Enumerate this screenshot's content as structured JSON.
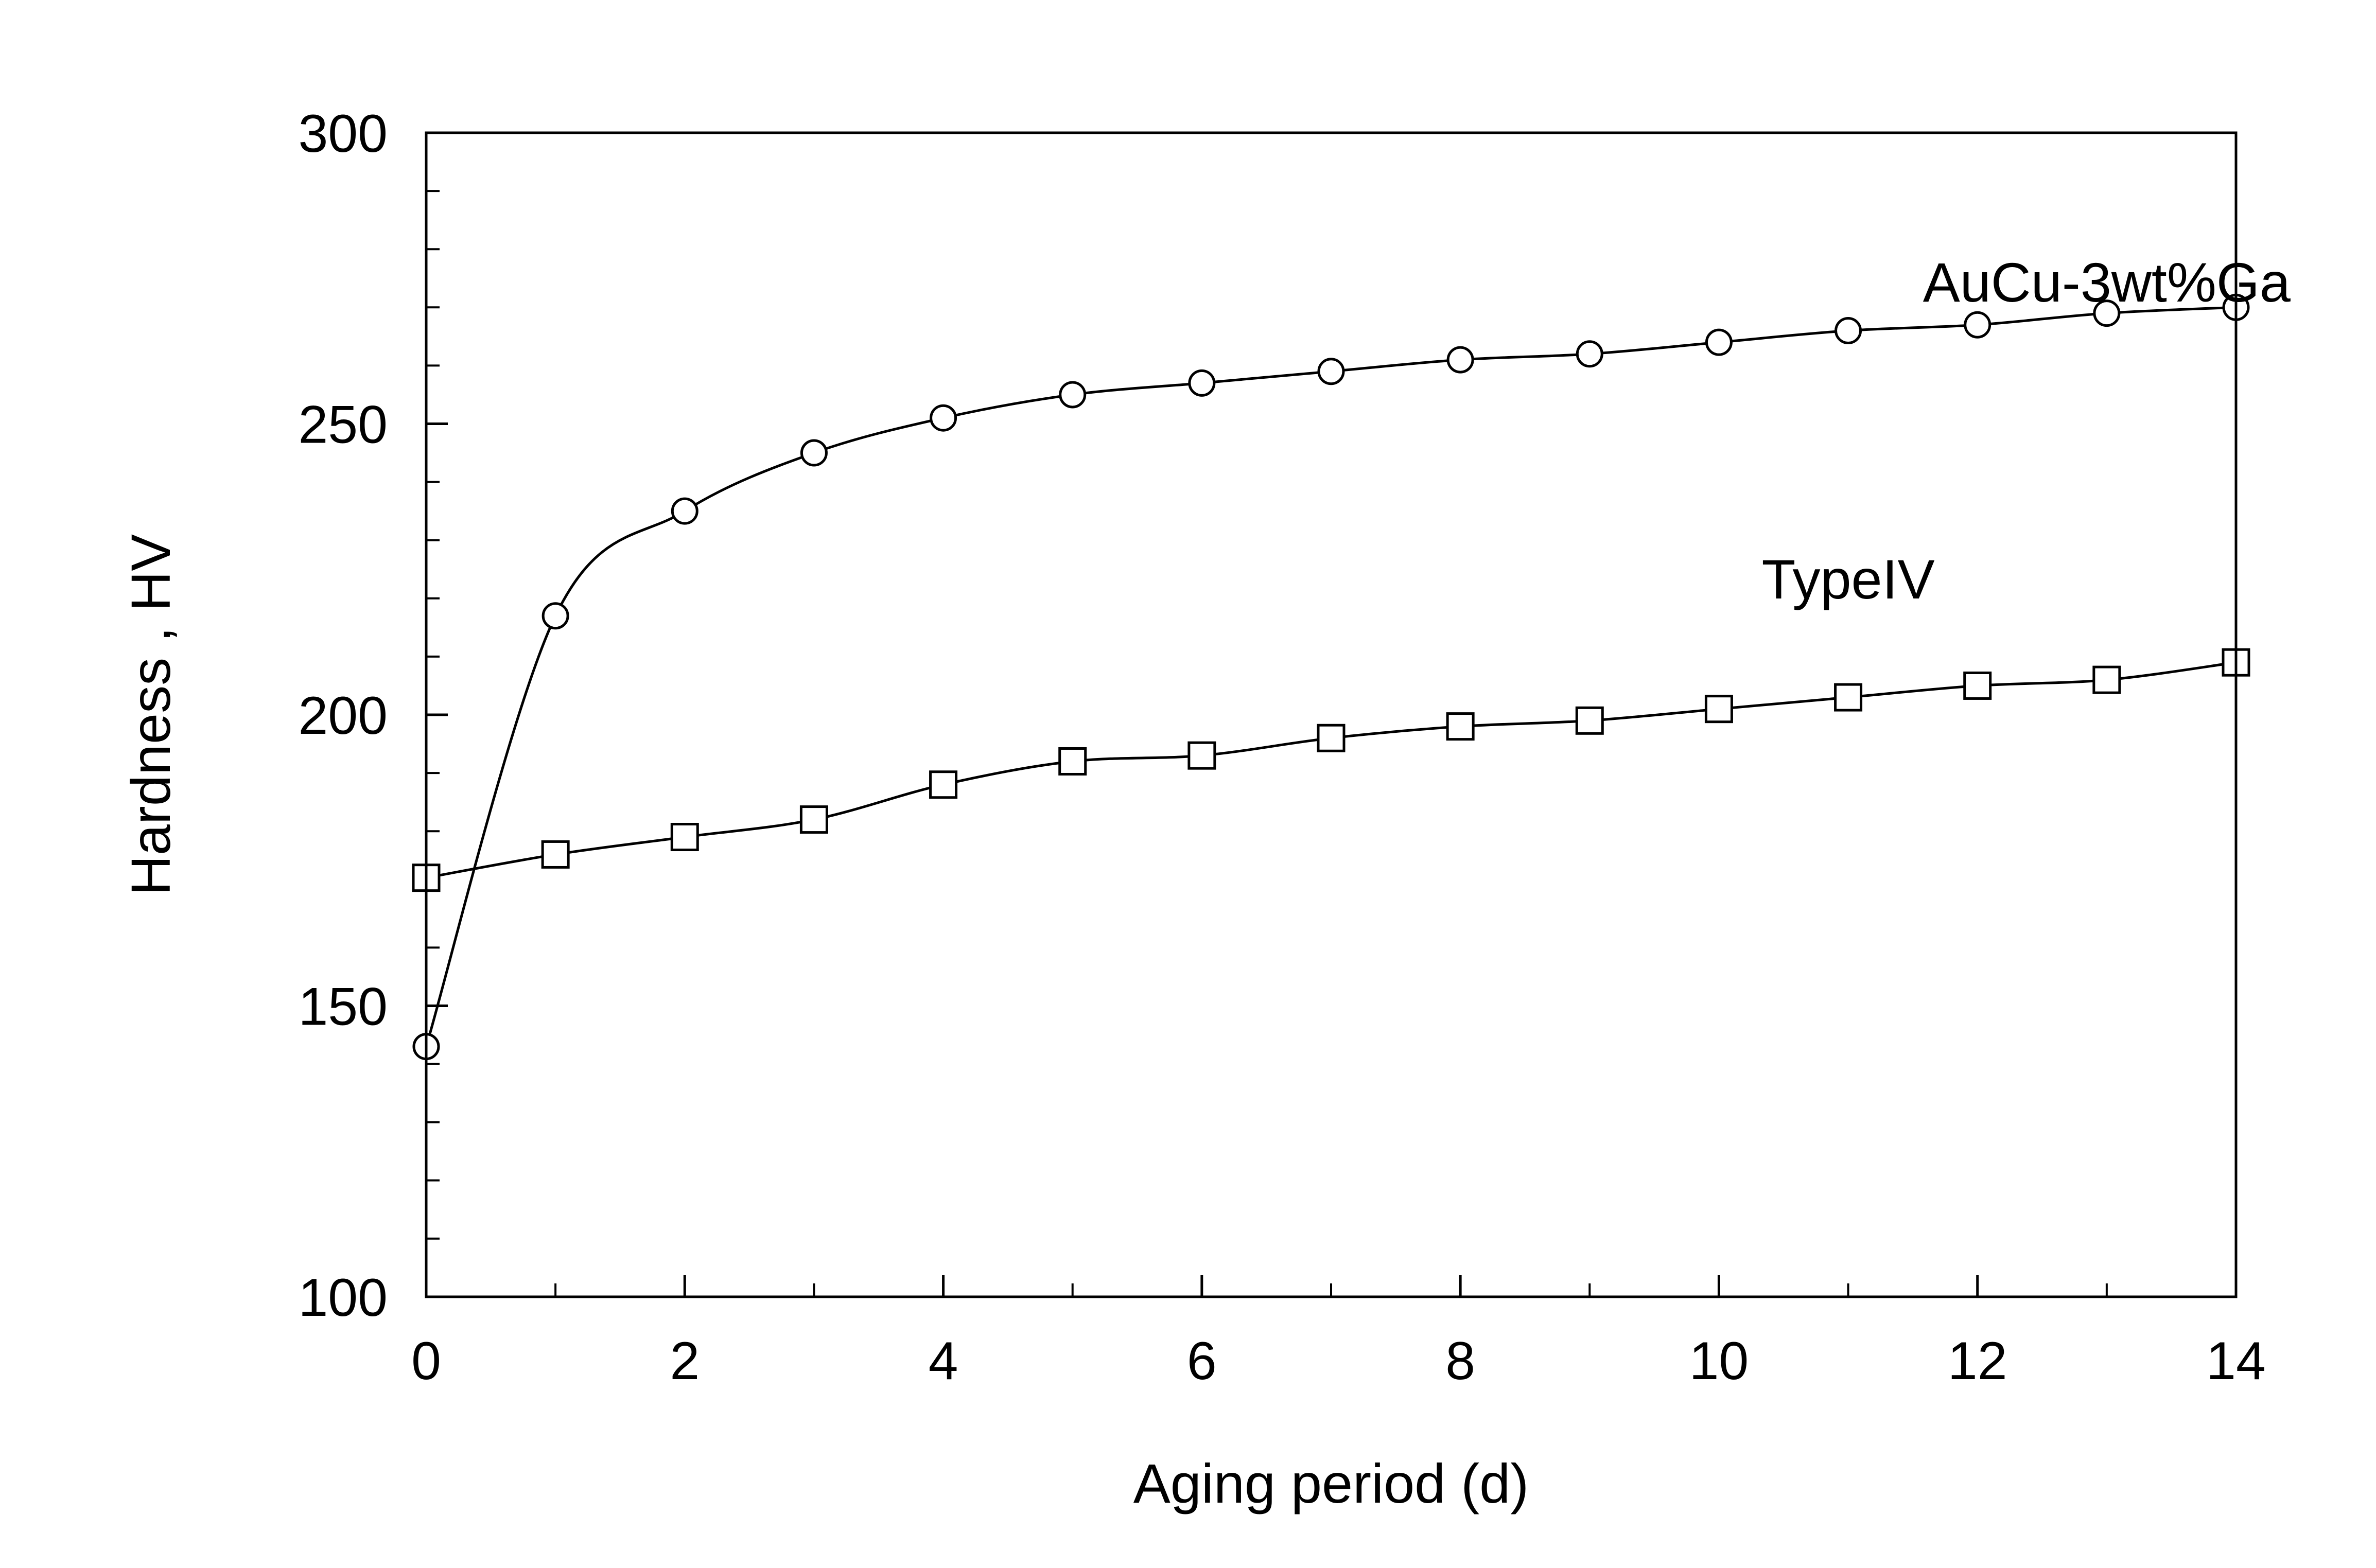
{
  "chart_data": {
    "type": "line",
    "title": "",
    "xlabel": "Aging period (d)",
    "ylabel": "Hardness , HV",
    "xlim": [
      0,
      14
    ],
    "ylim": [
      100,
      300
    ],
    "x_ticks": [
      0,
      2,
      4,
      6,
      8,
      10,
      12,
      14
    ],
    "x_minor_ticks": [
      1,
      3,
      5,
      7,
      9,
      11,
      13
    ],
    "y_ticks": [
      100,
      150,
      200,
      250,
      300
    ],
    "y_minor_ticks": [
      110,
      120,
      130,
      140,
      160,
      170,
      180,
      190,
      210,
      220,
      230,
      240,
      260,
      270,
      280,
      290
    ],
    "grid": false,
    "legend": "none",
    "x": [
      0,
      1,
      2,
      3,
      4,
      5,
      6,
      7,
      8,
      9,
      10,
      11,
      12,
      13,
      14
    ],
    "series": [
      {
        "name": "AuCu-3wt%Ga",
        "marker": "circle",
        "values": [
          143,
          217,
          235,
          245,
          251,
          255,
          257,
          259,
          261,
          262,
          264,
          266,
          267,
          269,
          270
        ],
        "label_anchor": [
          13,
          271
        ]
      },
      {
        "name": "TypeIV",
        "marker": "square",
        "values": [
          172,
          176,
          179,
          182,
          188,
          192,
          193,
          196,
          198,
          199,
          201,
          203,
          205,
          206,
          209
        ],
        "label_anchor": [
          11,
          220
        ]
      }
    ],
    "colors": {
      "ink": "#000000",
      "marker_fill": "#ffffff",
      "background": "#ffffff"
    }
  }
}
